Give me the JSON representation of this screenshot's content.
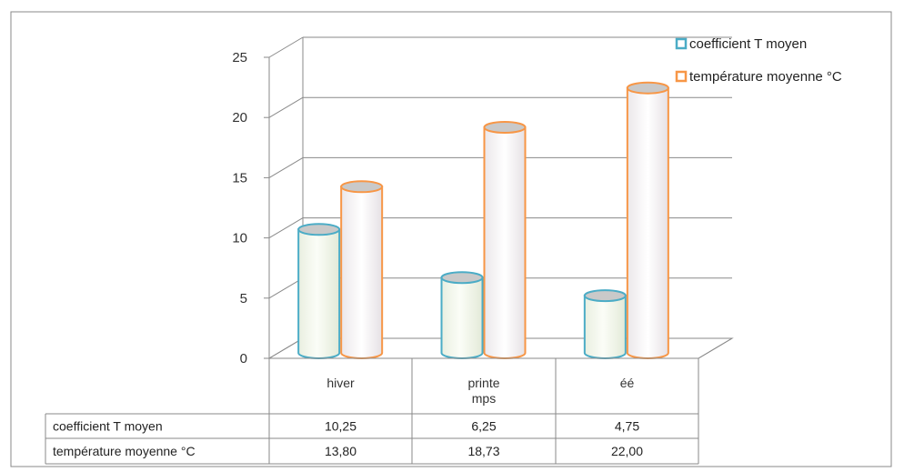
{
  "chart_data": {
    "type": "bar",
    "categories": [
      "hiver",
      "printe mps",
      "éé"
    ],
    "category_lines": [
      [
        "hiver"
      ],
      [
        "printe",
        "mps"
      ],
      [
        "éé"
      ]
    ],
    "series": [
      {
        "name": "coefficient T moyen",
        "values": [
          10.25,
          6.25,
          4.75
        ],
        "labels": [
          "10,25",
          "6,25",
          "4,75"
        ],
        "color": "#4bacc6"
      },
      {
        "name": "température moyenne °C",
        "values": [
          13.8,
          18.73,
          22.0
        ],
        "labels": [
          "13,80",
          "18,73",
          "22,00"
        ],
        "color": "#f79646"
      }
    ],
    "yticks": [
      "0",
      "5",
      "10",
      "15",
      "20",
      "25"
    ],
    "ylim": [
      0,
      25
    ],
    "grid": true,
    "legend_position": "top-right",
    "data_table": true,
    "style": "3d-cylinder"
  }
}
